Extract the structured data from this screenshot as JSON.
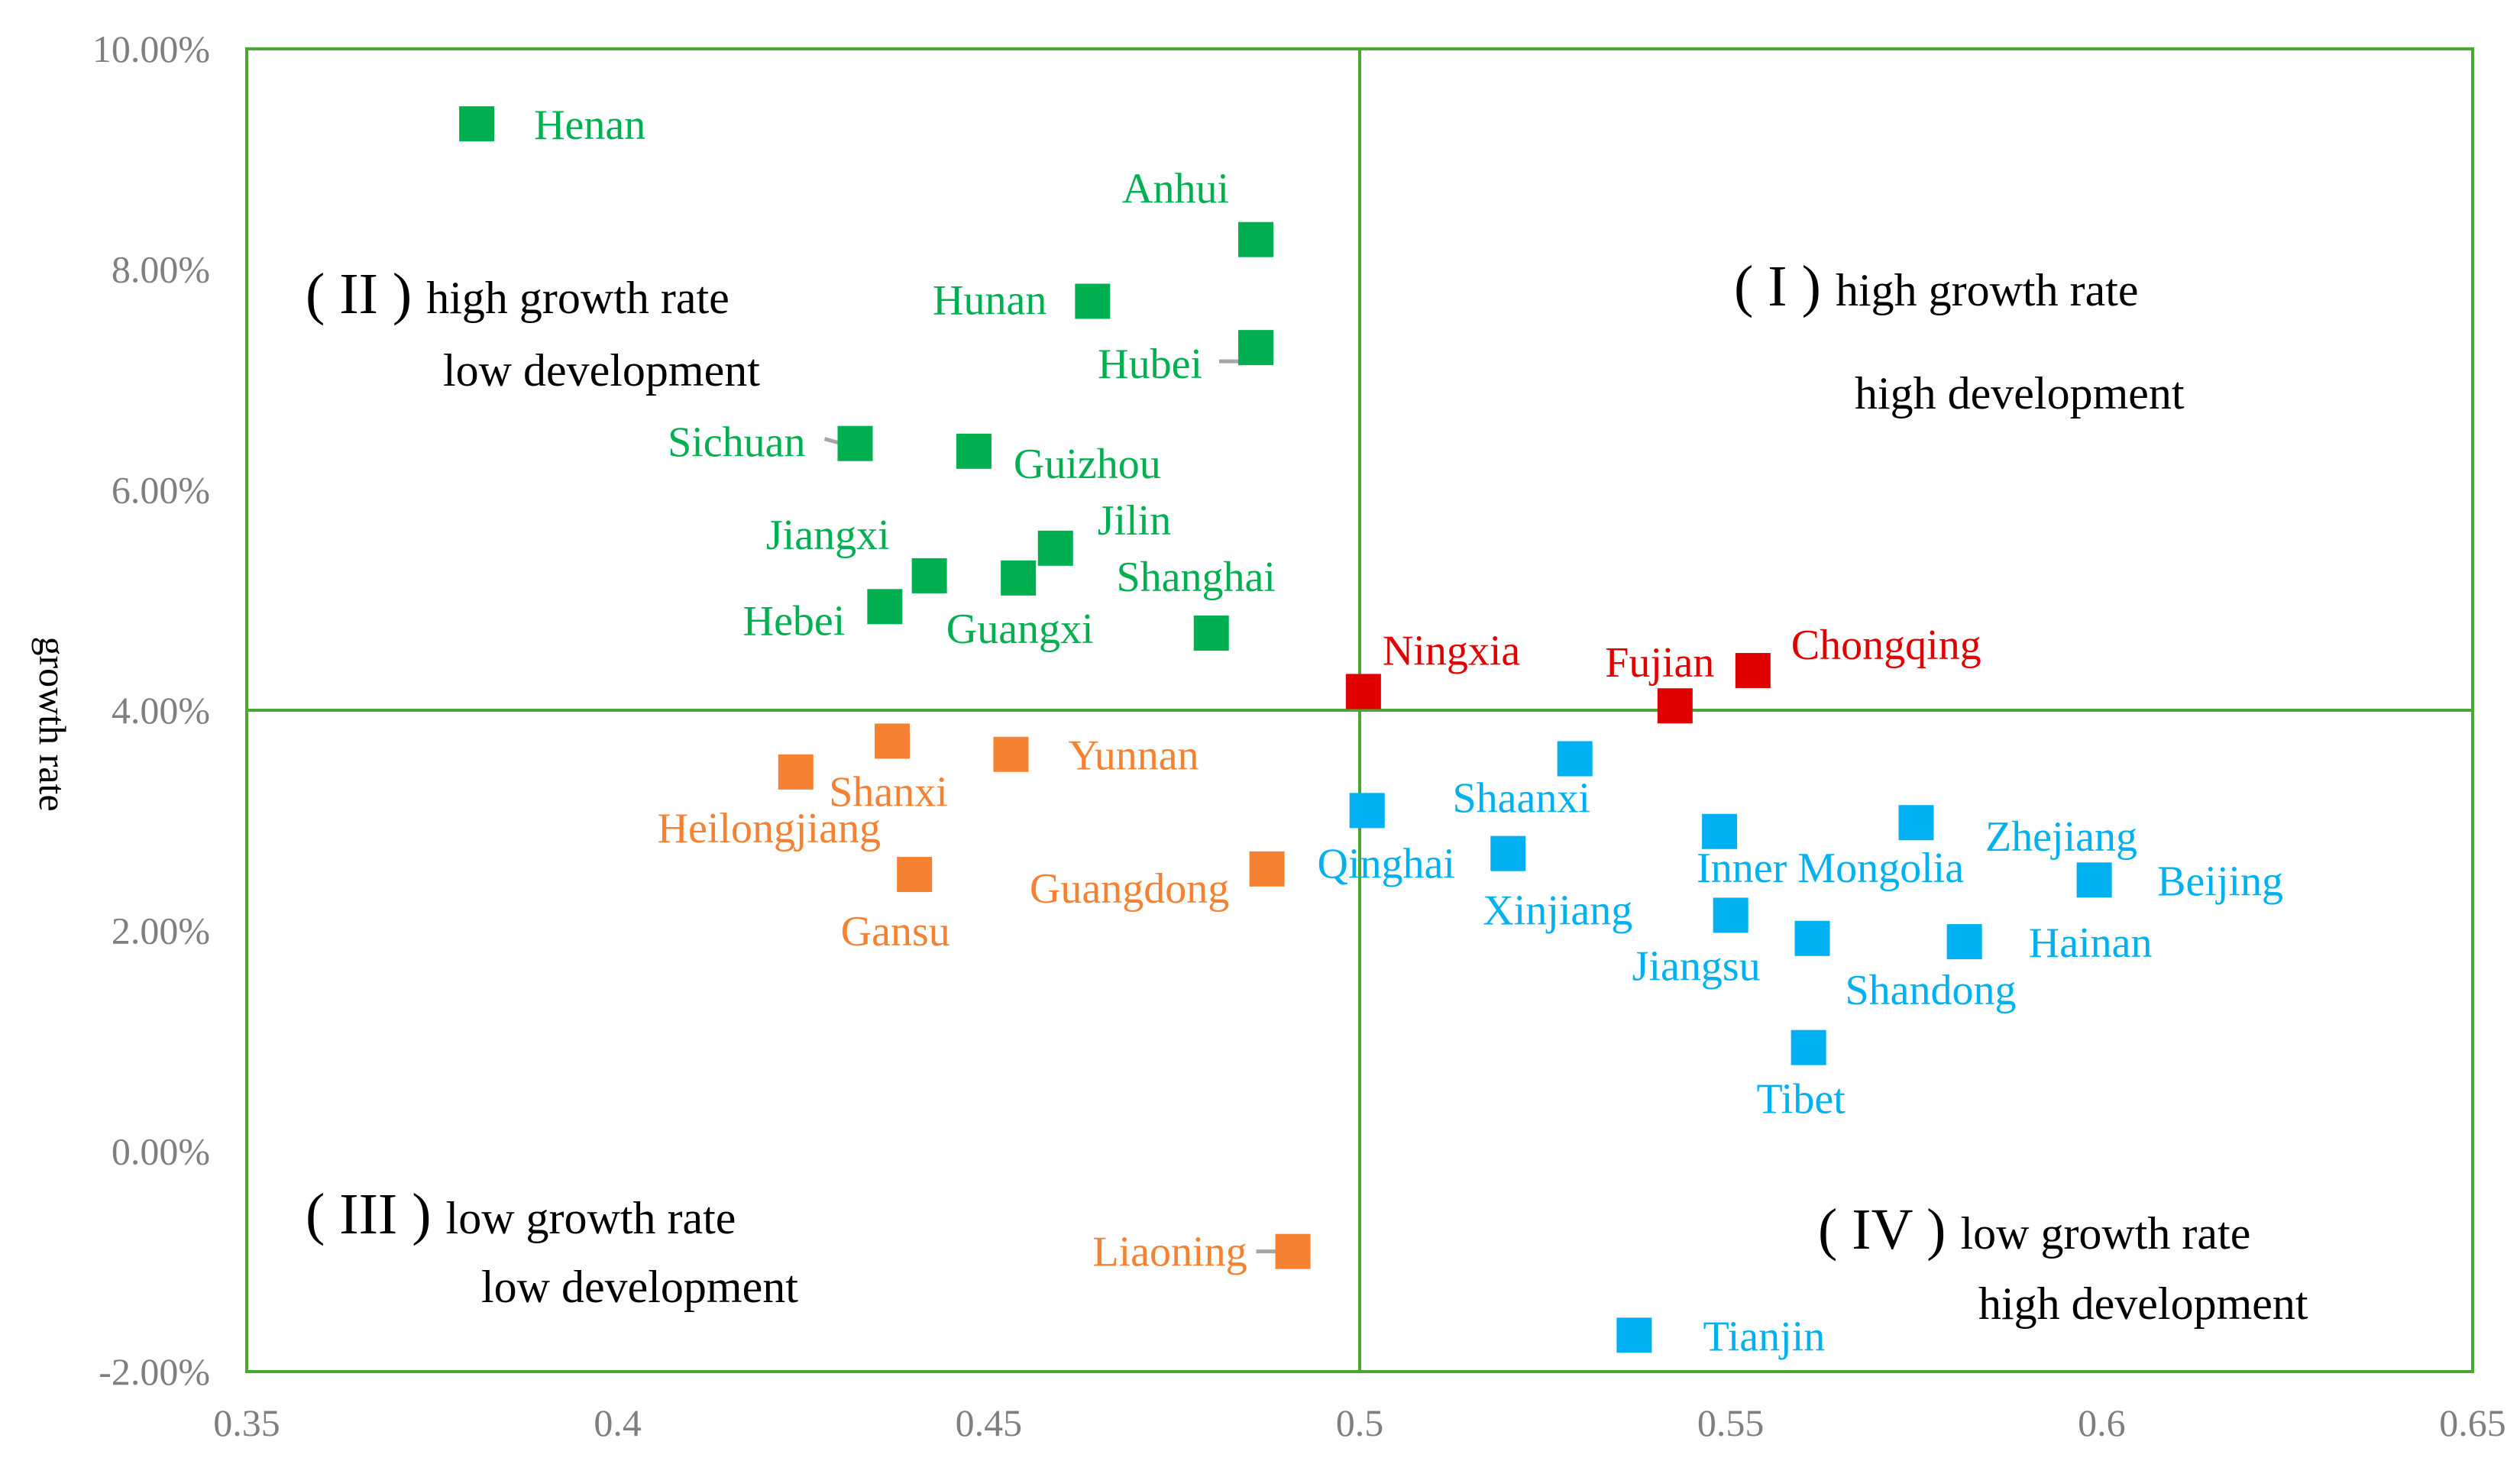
{
  "chart_data": {
    "type": "scatter",
    "title": "",
    "xlabel": "",
    "ylabel": "growth rate",
    "xlim": [
      0.35,
      0.65
    ],
    "ylim": [
      -0.02,
      0.1
    ],
    "x_ticks": [
      "0.35",
      "0.4",
      "0.45",
      "0.5",
      "0.55",
      "0.6",
      "0.65"
    ],
    "y_ticks": [
      "-2.00%",
      "0.00%",
      "2.00%",
      "4.00%",
      "6.00%",
      "8.00%",
      "10.00%"
    ],
    "grid": false,
    "divider": {
      "x": 0.5,
      "y": 0.04
    },
    "colors": {
      "frame": "#4aa832",
      "tick_text": "#7f7f7f",
      "leader": "#a6a6a6",
      "groups": {
        "high_low": "#00b050",
        "high_high": "#e00000",
        "low_low": "#f58232",
        "low_high": "#00b0f0"
      }
    },
    "quadrant_labels": [
      {
        "id": "I",
        "roman": "( I )",
        "line1": "high growth rate",
        "line2": "high development"
      },
      {
        "id": "II",
        "roman": "( II )",
        "line1": "high growth rate",
        "line2": "low development"
      },
      {
        "id": "III",
        "roman": "( III )",
        "line1": "low growth rate",
        "line2": "low development"
      },
      {
        "id": "IV",
        "roman": "( IV )",
        "line1": "low growth rate",
        "line2": "high development"
      }
    ],
    "series": [
      {
        "name": "high growth rate / low development",
        "group": "high_low",
        "points": [
          {
            "label": "Henan",
            "x": 0.381,
            "y": 0.0932
          },
          {
            "label": "Anhui",
            "x": 0.486,
            "y": 0.0827
          },
          {
            "label": "Hunan",
            "x": 0.464,
            "y": 0.0771
          },
          {
            "label": "Hubei",
            "x": 0.486,
            "y": 0.0729
          },
          {
            "label": "Sichuan",
            "x": 0.432,
            "y": 0.0642
          },
          {
            "label": "Guizhou",
            "x": 0.448,
            "y": 0.0635
          },
          {
            "label": "Jilin",
            "x": 0.459,
            "y": 0.0547
          },
          {
            "label": "Jiangxi",
            "x": 0.442,
            "y": 0.0522
          },
          {
            "label": "Guangxi",
            "x": 0.454,
            "y": 0.052
          },
          {
            "label": "Hebei",
            "x": 0.436,
            "y": 0.0494
          },
          {
            "label": "Shanghai",
            "x": 0.48,
            "y": 0.047
          }
        ]
      },
      {
        "name": "high growth rate / high development",
        "group": "high_high",
        "points": [
          {
            "label": "Ningxia",
            "x": 0.5005,
            "y": 0.0417
          },
          {
            "label": "Fujian",
            "x": 0.5425,
            "y": 0.0404
          },
          {
            "label": "Chongqing",
            "x": 0.553,
            "y": 0.0436
          }
        ]
      },
      {
        "name": "low growth rate / low development",
        "group": "low_low",
        "points": [
          {
            "label": "Yunnan",
            "x": 0.453,
            "y": 0.036
          },
          {
            "label": "Shanxi",
            "x": 0.437,
            "y": 0.0372
          },
          {
            "label": "Heilongjiang",
            "x": 0.424,
            "y": 0.0344
          },
          {
            "label": "Gansu",
            "x": 0.44,
            "y": 0.0251
          },
          {
            "label": "Guangdong",
            "x": 0.4875,
            "y": 0.0256
          },
          {
            "label": "Liaoning",
            "x": 0.491,
            "y": -0.0091
          }
        ]
      },
      {
        "name": "low growth rate / high development",
        "group": "low_high",
        "points": [
          {
            "label": "Shaanxi",
            "x": 0.529,
            "y": 0.0356
          },
          {
            "label": "Qinghai",
            "x": 0.501,
            "y": 0.0309
          },
          {
            "label": "Xinjiang",
            "x": 0.52,
            "y": 0.027
          },
          {
            "label": "Inner Mongolia",
            "x": 0.5485,
            "y": 0.029
          },
          {
            "label": "Zhejiang",
            "x": 0.575,
            "y": 0.0298
          },
          {
            "label": "Beijing",
            "x": 0.599,
            "y": 0.0246
          },
          {
            "label": "Jiangsu",
            "x": 0.55,
            "y": 0.0214
          },
          {
            "label": "Shandong",
            "x": 0.561,
            "y": 0.0193
          },
          {
            "label": "Hainan",
            "x": 0.5815,
            "y": 0.019
          },
          {
            "label": "Tibet",
            "x": 0.5605,
            "y": 0.0094
          },
          {
            "label": "Tianjin",
            "x": 0.537,
            "y": -0.0167
          }
        ]
      }
    ]
  }
}
